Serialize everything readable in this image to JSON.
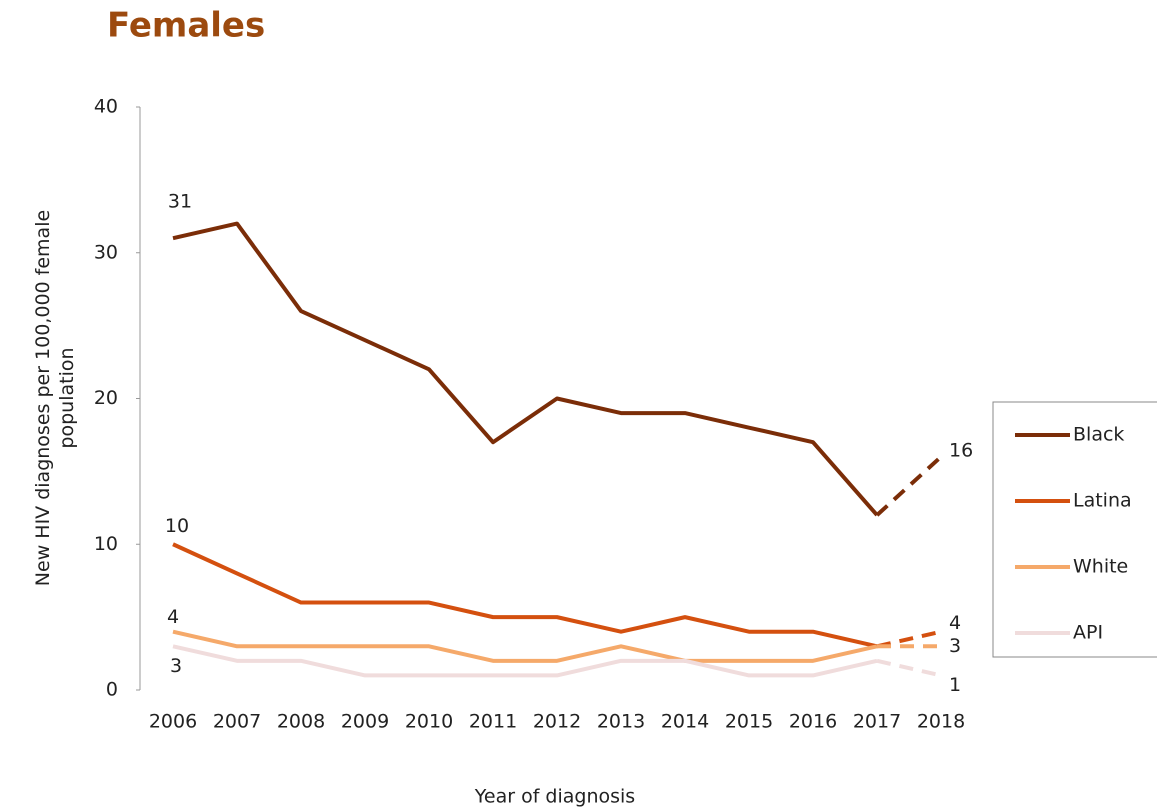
{
  "chart_data": {
    "type": "line",
    "title": "Females",
    "xlabel": "Year of diagnosis",
    "ylabel": "New HIV diagnoses per 100,000 female population",
    "categories": [
      2006,
      2007,
      2008,
      2009,
      2010,
      2011,
      2012,
      2013,
      2014,
      2015,
      2016,
      2017,
      2018
    ],
    "series": [
      {
        "name": "Black",
        "color": "#7b2d08",
        "values": [
          31,
          32,
          26,
          24,
          22,
          17,
          20,
          19,
          19,
          18,
          17,
          12,
          16
        ]
      },
      {
        "name": "Latina",
        "color": "#d4500f",
        "values": [
          10,
          8,
          6,
          6,
          6,
          5,
          5,
          4,
          5,
          4,
          4,
          3,
          4
        ]
      },
      {
        "name": "White",
        "color": "#f5a96a",
        "values": [
          4,
          3,
          3,
          3,
          3,
          2,
          2,
          3,
          2,
          2,
          2,
          3,
          3
        ]
      },
      {
        "name": "API",
        "color": "#f0dcdc",
        "values": [
          3,
          2,
          2,
          1,
          1,
          1,
          1,
          2,
          2,
          1,
          1,
          2,
          1
        ]
      }
    ],
    "dashed_from": 2017,
    "data_labels_at": [
      2006,
      2018
    ],
    "ylim": [
      0,
      40
    ],
    "yticks": [
      0,
      10,
      20,
      30,
      40
    ],
    "grid": false,
    "legend": "right"
  }
}
